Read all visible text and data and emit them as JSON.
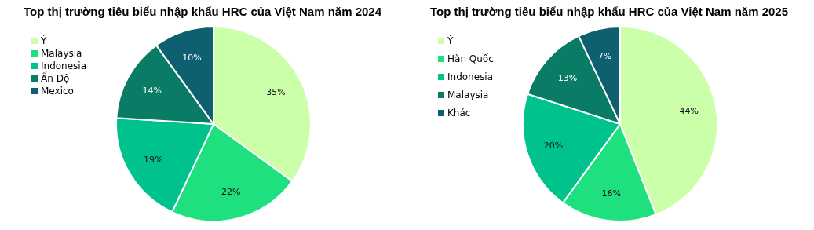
{
  "chart_data": [
    {
      "type": "pie",
      "title": "Top thị trường tiêu biểu nhập khẩu HRC của Việt Nam năm 2024",
      "categories": [
        "Ý",
        "Malaysia",
        "Indonesia",
        "Ấn Độ",
        "Mexico"
      ],
      "values": [
        35,
        22,
        19,
        14,
        10
      ],
      "value_labels": [
        "35%",
        "22%",
        "19%",
        "14%",
        "10%"
      ],
      "colors": [
        "#ccffaa",
        "#1ee07f",
        "#00c28c",
        "#0a7b64",
        "#0e5f70"
      ],
      "legend": "top left"
    },
    {
      "type": "pie",
      "title": "Top thị trường tiêu biểu nhập khẩu HRC của Việt Nam năm 2025",
      "categories": [
        "Ý",
        "Hàn Quốc",
        "Indonesia",
        "Malaysia",
        "Khác"
      ],
      "values": [
        44,
        16,
        20,
        13,
        7
      ],
      "value_labels": [
        "44%",
        "16%",
        "20%",
        "13%",
        "7%"
      ],
      "colors": [
        "#ccffaa",
        "#1ee07f",
        "#00c28c",
        "#0a7b64",
        "#0e5f70"
      ],
      "legend": "top left"
    }
  ]
}
